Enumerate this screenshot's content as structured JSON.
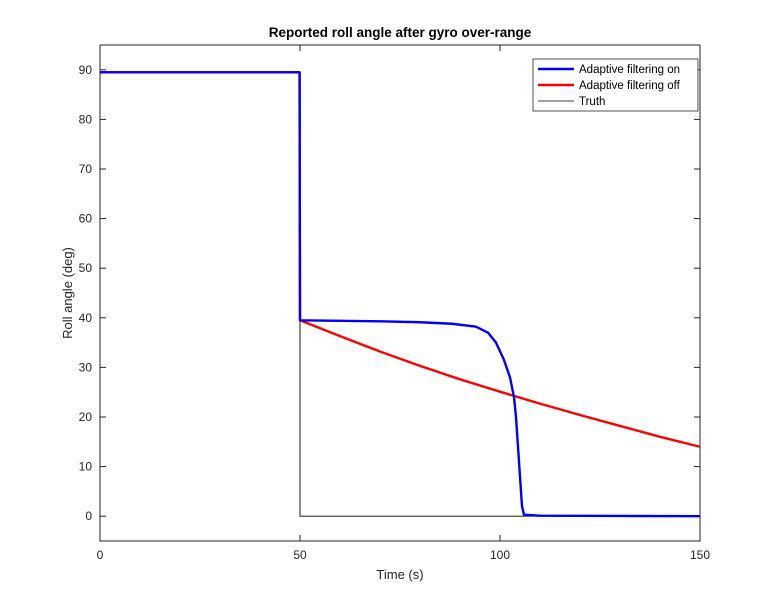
{
  "chart_data": {
    "type": "line",
    "title": "Reported roll angle after gyro over-range",
    "xlabel": "Time (s)",
    "ylabel": "Roll angle (deg)",
    "xlim": [
      0,
      150
    ],
    "ylim": [
      -5,
      95
    ],
    "xticks": [
      0,
      50,
      100,
      150
    ],
    "yticks": [
      0,
      10,
      20,
      30,
      40,
      50,
      60,
      70,
      80,
      90
    ],
    "grid": false,
    "legend_position": "top-right",
    "series": [
      {
        "name": "Adaptive filtering on",
        "color": "#0000ff",
        "points": [
          [
            0,
            89.5
          ],
          [
            49.9,
            89.5
          ],
          [
            50,
            39.5
          ],
          [
            60,
            39.4
          ],
          [
            70,
            39.3
          ],
          [
            80,
            39.1
          ],
          [
            88,
            38.8
          ],
          [
            94,
            38.2
          ],
          [
            97,
            37.0
          ],
          [
            99,
            35.0
          ],
          [
            101,
            31.5
          ],
          [
            102.5,
            28.0
          ],
          [
            103.5,
            24.0
          ],
          [
            104,
            20.0
          ],
          [
            104.5,
            14.0
          ],
          [
            105,
            8.0
          ],
          [
            105.5,
            2.0
          ],
          [
            106,
            0.3
          ],
          [
            110,
            0.1
          ],
          [
            130,
            0.05
          ],
          [
            150,
            0.0
          ]
        ]
      },
      {
        "name": "Adaptive filtering off",
        "color": "#ff0000",
        "points": [
          [
            0,
            89.5
          ],
          [
            49.9,
            89.5
          ],
          [
            50,
            39.5
          ],
          [
            60,
            36.3
          ],
          [
            70,
            33.2
          ],
          [
            80,
            30.3
          ],
          [
            90,
            27.6
          ],
          [
            100,
            25.1
          ],
          [
            110,
            22.7
          ],
          [
            120,
            20.4
          ],
          [
            130,
            18.2
          ],
          [
            140,
            16.0
          ],
          [
            150,
            14.0
          ]
        ]
      },
      {
        "name": "Truth",
        "color": "#000000",
        "points": [
          [
            0,
            89.5
          ],
          [
            50,
            89.5
          ],
          [
            50,
            0
          ],
          [
            150,
            0
          ]
        ]
      }
    ]
  }
}
